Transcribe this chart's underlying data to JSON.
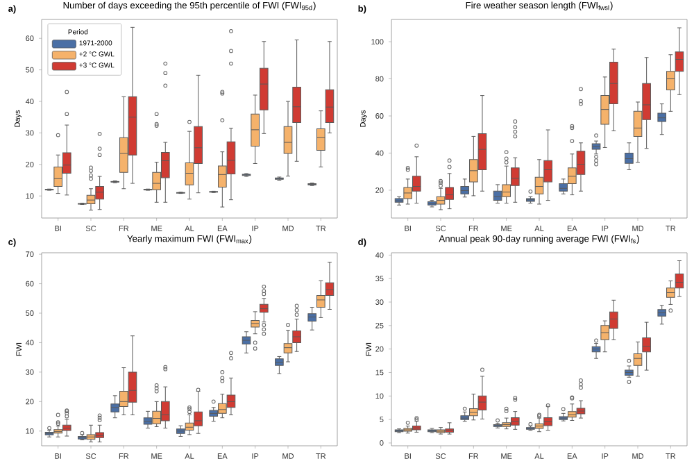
{
  "chart_data": [
    {
      "type": "box",
      "title": "Number of days exceeding the 95th percentile of FWI (FWI$_{95d}$)",
      "annotations": [
        "a)"
      ],
      "ylabel": "Days",
      "categories": [
        "BI",
        "SC",
        "FR",
        "ME",
        "AL",
        "EA",
        "IP",
        "MD",
        "TR"
      ],
      "ylim": [
        3,
        66
      ],
      "yticks": [
        10,
        20,
        30,
        40,
        50,
        60
      ],
      "legend": "top left",
      "legend_title": "Period",
      "series": [
        {
          "name": "1971-2000",
          "color": "#4a6fa5",
          "boxes": [
            {
              "low": 11.8,
              "q1": 11.9,
              "median": 12,
              "q3": 12.1,
              "high": 12.2
            },
            {
              "low": 7.3,
              "q1": 7.4,
              "median": 7.5,
              "q3": 7.6,
              "high": 7.7
            },
            {
              "low": 14.2,
              "q1": 14.4,
              "median": 14.5,
              "q3": 14.6,
              "high": 14.8
            },
            {
              "low": 11.8,
              "q1": 11.9,
              "median": 12,
              "q3": 12.1,
              "high": 12.2
            },
            {
              "low": 10.8,
              "q1": 10.9,
              "median": 11,
              "q3": 11.1,
              "high": 11.2
            },
            {
              "low": 11.1,
              "q1": 11.2,
              "median": 11.3,
              "q3": 11.4,
              "high": 11.5
            },
            {
              "low": 16.2,
              "q1": 16.5,
              "median": 16.7,
              "q3": 16.9,
              "high": 17.1
            },
            {
              "low": 15,
              "q1": 15.3,
              "median": 15.5,
              "q3": 15.7,
              "high": 16
            },
            {
              "low": 13.3,
              "q1": 13.5,
              "median": 13.7,
              "q3": 13.9,
              "high": 14.1
            }
          ]
        },
        {
          "name": "+2 °C GWL",
          "color": "#f5b26b",
          "boxes": [
            {
              "low": 10.8,
              "q1": 13,
              "median": 15.5,
              "q3": 19.2,
              "high": 23,
              "outliers": [
                29.3
              ]
            },
            {
              "low": 5.5,
              "q1": 7.5,
              "median": 8.7,
              "q3": 10.2,
              "high": 12.3,
              "outliers": [
                15.5,
                16.5,
                18,
                19
              ]
            },
            {
              "low": 12.3,
              "q1": 17.5,
              "median": 23.5,
              "q3": 28.5,
              "high": 41.5
            },
            {
              "low": 8,
              "q1": 12,
              "median": 14,
              "q3": 17.5,
              "high": 20.7,
              "outliers": [
                32.3,
                32.8,
                36
              ]
            },
            {
              "low": 9,
              "q1": 13.5,
              "median": 17.2,
              "q3": 20.5,
              "high": 30.5,
              "outliers": [
                33.5
              ]
            },
            {
              "low": 6.5,
              "q1": 12.8,
              "median": 16.8,
              "q3": 19.5,
              "high": 24,
              "outliers": [
                34,
                42.5,
                43
              ]
            },
            {
              "low": 20.3,
              "q1": 25.8,
              "median": 31,
              "q3": 36,
              "high": 42
            },
            {
              "low": 16.3,
              "q1": 23.5,
              "median": 27,
              "q3": 32,
              "high": 40
            },
            {
              "low": 19.2,
              "q1": 24.5,
              "median": 28.5,
              "q3": 31.3,
              "high": 37
            }
          ]
        },
        {
          "name": "+3 °C GWL",
          "color": "#d03b33",
          "boxes": [
            {
              "low": 10.3,
              "q1": 17.2,
              "median": 19.8,
              "q3": 23.7,
              "high": 32.5,
              "outliers": [
                36,
                43
              ]
            },
            {
              "low": 5.7,
              "q1": 9,
              "median": 11.2,
              "q3": 13,
              "high": 16.2,
              "outliers": [
                23,
                25,
                29.7
              ]
            },
            {
              "low": 14,
              "q1": 23,
              "median": 35,
              "q3": 41.5,
              "high": 63.5
            },
            {
              "low": 8,
              "q1": 15.8,
              "median": 21.2,
              "q3": 23.8,
              "high": 27,
              "outliers": [
                45,
                49,
                52
              ]
            },
            {
              "low": 11,
              "q1": 20.3,
              "median": 25.3,
              "q3": 32,
              "high": 48.3
            },
            {
              "low": 8.8,
              "q1": 17,
              "median": 21.3,
              "q3": 27.2,
              "high": 31.5,
              "outliers": [
                52,
                56,
                62.3
              ]
            },
            {
              "low": 29.8,
              "q1": 37.3,
              "median": 45.5,
              "q3": 50.5,
              "high": 59
            },
            {
              "low": 21,
              "q1": 33.3,
              "median": 38.3,
              "q3": 44.5,
              "high": 59.5
            },
            {
              "low": 30,
              "q1": 33.3,
              "median": 38.2,
              "q3": 43.7,
              "high": 59
            }
          ]
        }
      ]
    },
    {
      "type": "box",
      "title": "Fire weather season length (FWI$_{fwsl}$)",
      "annotations": [
        "b)"
      ],
      "ylabel": "Days",
      "categories": [
        "BI",
        "SC",
        "FR",
        "ME",
        "AL",
        "EA",
        "IP",
        "MD",
        "TR"
      ],
      "ylim": [
        5,
        112
      ],
      "yticks": [
        20,
        40,
        60,
        80,
        100
      ],
      "series": [
        {
          "color": "#4a6fa5",
          "boxes": [
            {
              "low": 12,
              "q1": 13.5,
              "median": 14.3,
              "q3": 15.5,
              "high": 16.5
            },
            {
              "low": 11,
              "q1": 12,
              "median": 12.8,
              "q3": 13.8,
              "high": 14.5
            },
            {
              "low": 16.3,
              "q1": 18,
              "median": 19.8,
              "q3": 22,
              "high": 26
            },
            {
              "low": 13,
              "q1": 14.5,
              "median": 16.5,
              "q3": 19.5,
              "high": 23
            },
            {
              "low": 13,
              "q1": 14,
              "median": 14.8,
              "q3": 15.5,
              "high": 16.5,
              "outliers": [
                19.3
              ]
            },
            {
              "low": 18,
              "q1": 19.5,
              "median": 21,
              "q3": 23.5,
              "high": 26
            },
            {
              "low": 39.5,
              "q1": 42,
              "median": 43.5,
              "q3": 45,
              "high": 46.5,
              "outliers": [
                34,
                36,
                38,
                49.5
              ]
            },
            {
              "low": 31,
              "q1": 34.5,
              "median": 37,
              "q3": 40,
              "high": 45.5
            },
            {
              "low": 50,
              "q1": 57,
              "median": 59,
              "q3": 61.5,
              "high": 66.5
            }
          ]
        },
        {
          "color": "#f5b26b",
          "boxes": [
            {
              "low": 12.5,
              "q1": 15.5,
              "median": 18.5,
              "q3": 21.5,
              "high": 26,
              "outliers": [
                31,
                32
              ]
            },
            {
              "low": 9.5,
              "q1": 12.5,
              "median": 14.5,
              "q3": 16.5,
              "high": 21,
              "outliers": [
                22.5,
                24,
                25
              ]
            },
            {
              "low": 17,
              "q1": 24.5,
              "median": 30.5,
              "q3": 36.5,
              "high": 49
            },
            {
              "low": 13,
              "q1": 16.5,
              "median": 19,
              "q3": 23,
              "high": 33,
              "outliers": [
                35,
                37,
                40.5
              ]
            },
            {
              "low": 12.5,
              "q1": 18,
              "median": 22,
              "q3": 27,
              "high": 36.5
            },
            {
              "low": 17.5,
              "q1": 23.5,
              "median": 27.5,
              "q3": 32,
              "high": 39.5,
              "outliers": [
                46.5,
                53.5,
                54.5
              ]
            },
            {
              "low": 43,
              "q1": 55.5,
              "median": 63.5,
              "q3": 71,
              "high": 81
            },
            {
              "low": 35,
              "q1": 49,
              "median": 53.5,
              "q3": 62.5,
              "high": 67.5
            },
            {
              "low": 62.5,
              "q1": 74,
              "median": 80,
              "q3": 84,
              "high": 93
            }
          ]
        },
        {
          "color": "#d03b33",
          "boxes": [
            {
              "low": 13,
              "q1": 19.5,
              "median": 22,
              "q3": 27.5,
              "high": 38,
              "outliers": [
                44
              ]
            },
            {
              "low": 10,
              "q1": 15,
              "median": 17.5,
              "q3": 21.5,
              "high": 29,
              "outliers": [
                32.5,
                36
              ]
            },
            {
              "low": 19.5,
              "q1": 31,
              "median": 42,
              "q3": 50.5,
              "high": 71
            },
            {
              "low": 13.5,
              "q1": 22.5,
              "median": 26.5,
              "q3": 32,
              "high": 37.5,
              "outliers": [
                49,
                51.5,
                54,
                57
              ]
            },
            {
              "low": 14.5,
              "q1": 24.5,
              "median": 31,
              "q3": 36,
              "high": 52.5
            },
            {
              "low": 19.5,
              "q1": 28.5,
              "median": 34,
              "q3": 41,
              "high": 45.5,
              "outliers": [
                66.5,
                68,
                74.5
              ]
            },
            {
              "low": 52,
              "q1": 66.5,
              "median": 77.5,
              "q3": 89,
              "high": 96
            },
            {
              "low": 42.5,
              "q1": 58,
              "median": 66,
              "q3": 77.5,
              "high": 91.5
            },
            {
              "low": 71.5,
              "q1": 84,
              "median": 90.5,
              "q3": 94.5,
              "high": 107.5
            }
          ]
        }
      ]
    },
    {
      "type": "box",
      "title": "Yearly maximum FWI (FWI$_{max}$)",
      "annotations": [
        "c)"
      ],
      "ylabel": "FWI",
      "categories": [
        "BI",
        "SC",
        "FR",
        "ME",
        "AL",
        "EA",
        "IP",
        "MD",
        "TR"
      ],
      "ylim": [
        5,
        70.5
      ],
      "yticks": [
        10,
        20,
        30,
        40,
        50,
        60,
        70
      ],
      "series": [
        {
          "color": "#4a6fa5",
          "boxes": [
            {
              "low": 8,
              "q1": 8.7,
              "median": 9.2,
              "q3": 9.6,
              "high": 10.3,
              "outliers": [
                11
              ]
            },
            {
              "low": 7,
              "q1": 7.3,
              "median": 7.7,
              "q3": 8.2,
              "high": 8.8,
              "outliers": [
                9.3
              ]
            },
            {
              "low": 14.5,
              "q1": 16.5,
              "median": 18,
              "q3": 19.2,
              "high": 22
            },
            {
              "low": 11,
              "q1": 12.3,
              "median": 13.3,
              "q3": 14.5,
              "high": 16.7
            },
            {
              "low": 8.2,
              "q1": 9.2,
              "median": 10,
              "q3": 10.7,
              "high": 11.8
            },
            {
              "low": 13.3,
              "q1": 15,
              "median": 16,
              "q3": 17,
              "high": 18,
              "outliers": [
                20
              ]
            },
            {
              "low": 36.5,
              "q1": 39.5,
              "median": 40.8,
              "q3": 42,
              "high": 43.7
            },
            {
              "low": 29.5,
              "q1": 32.3,
              "median": 33.3,
              "q3": 34.5,
              "high": 35.3
            },
            {
              "low": 44.3,
              "q1": 47.3,
              "median": 48.7,
              "q3": 49.8,
              "high": 52
            }
          ]
        },
        {
          "color": "#f5b26b",
          "boxes": [
            {
              "low": 8,
              "q1": 9.3,
              "median": 9.8,
              "q3": 10.5,
              "high": 11.7,
              "outliers": [
                12.5,
                13,
                15.5
              ]
            },
            {
              "low": 6.3,
              "q1": 7.2,
              "median": 8,
              "q3": 8.8,
              "high": 12
            },
            {
              "low": 15.5,
              "q1": 18.3,
              "median": 20,
              "q3": 23.5,
              "high": 31.5
            },
            {
              "low": 11.5,
              "q1": 12.5,
              "median": 14.3,
              "q3": 16.7,
              "high": 20,
              "outliers": [
                23.5,
                24.5,
                25.5
              ]
            },
            {
              "low": 8.8,
              "q1": 10.3,
              "median": 11.3,
              "q3": 12.7,
              "high": 15.5,
              "outliers": [
                16.5,
                17.5,
                18
              ]
            },
            {
              "low": 14.5,
              "q1": 16,
              "median": 17.3,
              "q3": 19.3,
              "high": 22.5,
              "outliers": [
                27,
                28,
                30
              ]
            },
            {
              "low": 43,
              "q1": 45.3,
              "median": 46.5,
              "q3": 47.5,
              "high": 50.5,
              "outliers": [
                38,
                40
              ]
            },
            {
              "low": 33.5,
              "q1": 36.5,
              "median": 38.3,
              "q3": 39.7,
              "high": 44.2,
              "outliers": [
                46
              ]
            },
            {
              "low": 48.5,
              "q1": 52,
              "median": 54.5,
              "q3": 56,
              "high": 61
            }
          ]
        },
        {
          "color": "#d03b33",
          "boxes": [
            {
              "low": 8.3,
              "q1": 10.2,
              "median": 11,
              "q3": 12,
              "high": 14,
              "outliers": [
                15,
                16,
                16.7,
                17
              ]
            },
            {
              "low": 6.3,
              "q1": 7.8,
              "median": 8.5,
              "q3": 9.5,
              "high": 12,
              "outliers": [
                13.7,
                14.5,
                15.3
              ]
            },
            {
              "low": 15.5,
              "q1": 19.8,
              "median": 23.8,
              "q3": 30,
              "high": 42.3
            },
            {
              "low": 11,
              "q1": 13.5,
              "median": 15.5,
              "q3": 20,
              "high": 25,
              "outliers": [
                31,
                31.7
              ]
            },
            {
              "low": 9.2,
              "q1": 11.8,
              "median": 13.5,
              "q3": 16.5,
              "high": 23.5,
              "outliers": [
                24
              ]
            },
            {
              "low": 15.5,
              "q1": 18,
              "median": 20,
              "q3": 22.2,
              "high": 28,
              "outliers": [
                34.7,
                36.5
              ]
            },
            {
              "low": 47,
              "q1": 50.3,
              "median": 51.5,
              "q3": 53,
              "high": 55,
              "outliers": [
                43,
                44.5,
                46,
                56.5,
                57.5,
                59
              ]
            },
            {
              "low": 37,
              "q1": 40,
              "median": 42,
              "q3": 44,
              "high": 48,
              "outliers": [
                49.5,
                51,
                52.5
              ]
            },
            {
              "low": 51.3,
              "q1": 56,
              "median": 58,
              "q3": 60.3,
              "high": 67.3
            }
          ]
        }
      ]
    },
    {
      "type": "box",
      "title": "Annual peak 90-day running average FWI (FWI$_{fs}$)",
      "annotations": [
        "d)"
      ],
      "ylabel": "FWI",
      "categories": [
        "BI",
        "SC",
        "FR",
        "ME",
        "AL",
        "EA",
        "IP",
        "MD",
        "TR"
      ],
      "ylim": [
        -0.6,
        40.5
      ],
      "yticks": [
        0,
        5,
        10,
        15,
        20,
        25,
        30,
        35,
        40
      ],
      "series": [
        {
          "color": "#4a6fa5",
          "boxes": [
            {
              "low": 2.2,
              "q1": 2.4,
              "median": 2.6,
              "q3": 2.8,
              "high": 3
            },
            {
              "low": 2.2,
              "q1": 2.4,
              "median": 2.6,
              "q3": 2.8,
              "high": 3.1
            },
            {
              "low": 4.6,
              "q1": 5,
              "median": 5.3,
              "q3": 5.8,
              "high": 6.6,
              "outliers": [
                7.3
              ]
            },
            {
              "low": 3.2,
              "q1": 3.5,
              "median": 3.7,
              "q3": 3.9,
              "high": 4.2,
              "outliers": [
                4.8
              ]
            },
            {
              "low": 2.7,
              "q1": 2.9,
              "median": 3.1,
              "q3": 3.3,
              "high": 3.6,
              "outliers": [
                4
              ]
            },
            {
              "low": 4.7,
              "q1": 5,
              "median": 5.3,
              "q3": 5.6,
              "high": 6.3,
              "outliers": [
                7.2
              ]
            },
            {
              "low": 18,
              "q1": 19.4,
              "median": 20,
              "q3": 20.5,
              "high": 21.2,
              "outliers": [
                21.8
              ]
            },
            {
              "low": 14,
              "q1": 14.4,
              "median": 15,
              "q3": 15.5,
              "high": 16.4,
              "outliers": [
                13,
                17.5
              ]
            },
            {
              "low": 25.3,
              "q1": 27,
              "median": 27.7,
              "q3": 28.4,
              "high": 29.3
            }
          ]
        },
        {
          "color": "#f5b26b",
          "boxes": [
            {
              "low": 2.1,
              "q1": 2.5,
              "median": 2.8,
              "q3": 3.1,
              "high": 3.6,
              "outliers": [
                4.3
              ]
            },
            {
              "low": 1.9,
              "q1": 2.2,
              "median": 2.5,
              "q3": 2.8,
              "high": 3.3
            },
            {
              "low": 4.9,
              "q1": 5.8,
              "median": 6.5,
              "q3": 7.3,
              "high": 10.4
            },
            {
              "low": 3,
              "q1": 3.5,
              "median": 3.9,
              "q3": 4.3,
              "high": 5.3,
              "outliers": [
                6.8,
                7.3
              ]
            },
            {
              "low": 2.4,
              "q1": 3.1,
              "median": 3.6,
              "q3": 4.1,
              "high": 5.3,
              "outliers": [
                5.7,
                6
              ]
            },
            {
              "low": 4.8,
              "q1": 5.5,
              "median": 6,
              "q3": 6.7,
              "high": 8.3,
              "outliers": [
                9.5,
                9.7
              ]
            },
            {
              "low": 19.4,
              "q1": 22,
              "median": 23.5,
              "q3": 25,
              "high": 26
            },
            {
              "low": 14.2,
              "q1": 16.5,
              "median": 18,
              "q3": 19,
              "high": 21.5
            },
            {
              "low": 29.5,
              "q1": 31,
              "median": 32,
              "q3": 33,
              "high": 34.5,
              "outliers": [
                28.2
              ]
            }
          ]
        },
        {
          "color": "#d03b33",
          "boxes": [
            {
              "low": 2.3,
              "q1": 2.8,
              "median": 3.2,
              "q3": 3.6,
              "high": 4.6,
              "outliers": [
                5,
                5.3
              ]
            },
            {
              "low": 1.9,
              "q1": 2.3,
              "median": 2.6,
              "q3": 3,
              "high": 4.3
            },
            {
              "low": 5.1,
              "q1": 7,
              "median": 8.7,
              "q3": 10,
              "high": 14.2,
              "outliers": [
                15.6
              ]
            },
            {
              "low": 2.9,
              "q1": 3.8,
              "median": 4.6,
              "q3": 5.4,
              "high": 6.7,
              "outliers": [
                9.2,
                9.6
              ]
            },
            {
              "low": 2.7,
              "q1": 3.7,
              "median": 4.5,
              "q3": 5.4,
              "high": 7.8,
              "outliers": [
                8
              ]
            },
            {
              "low": 5.3,
              "q1": 6.2,
              "median": 6.8,
              "q3": 7.4,
              "high": 9,
              "outliers": [
                11.8,
                12.5,
                13.3
              ]
            },
            {
              "low": 22,
              "q1": 24.4,
              "median": 26.4,
              "q3": 27.9,
              "high": 30.4
            },
            {
              "low": 15.5,
              "q1": 19.4,
              "median": 20.6,
              "q3": 22.4,
              "high": 25.7
            },
            {
              "low": 31.2,
              "q1": 33,
              "median": 34.2,
              "q3": 36,
              "high": 38.8
            }
          ]
        }
      ]
    }
  ]
}
